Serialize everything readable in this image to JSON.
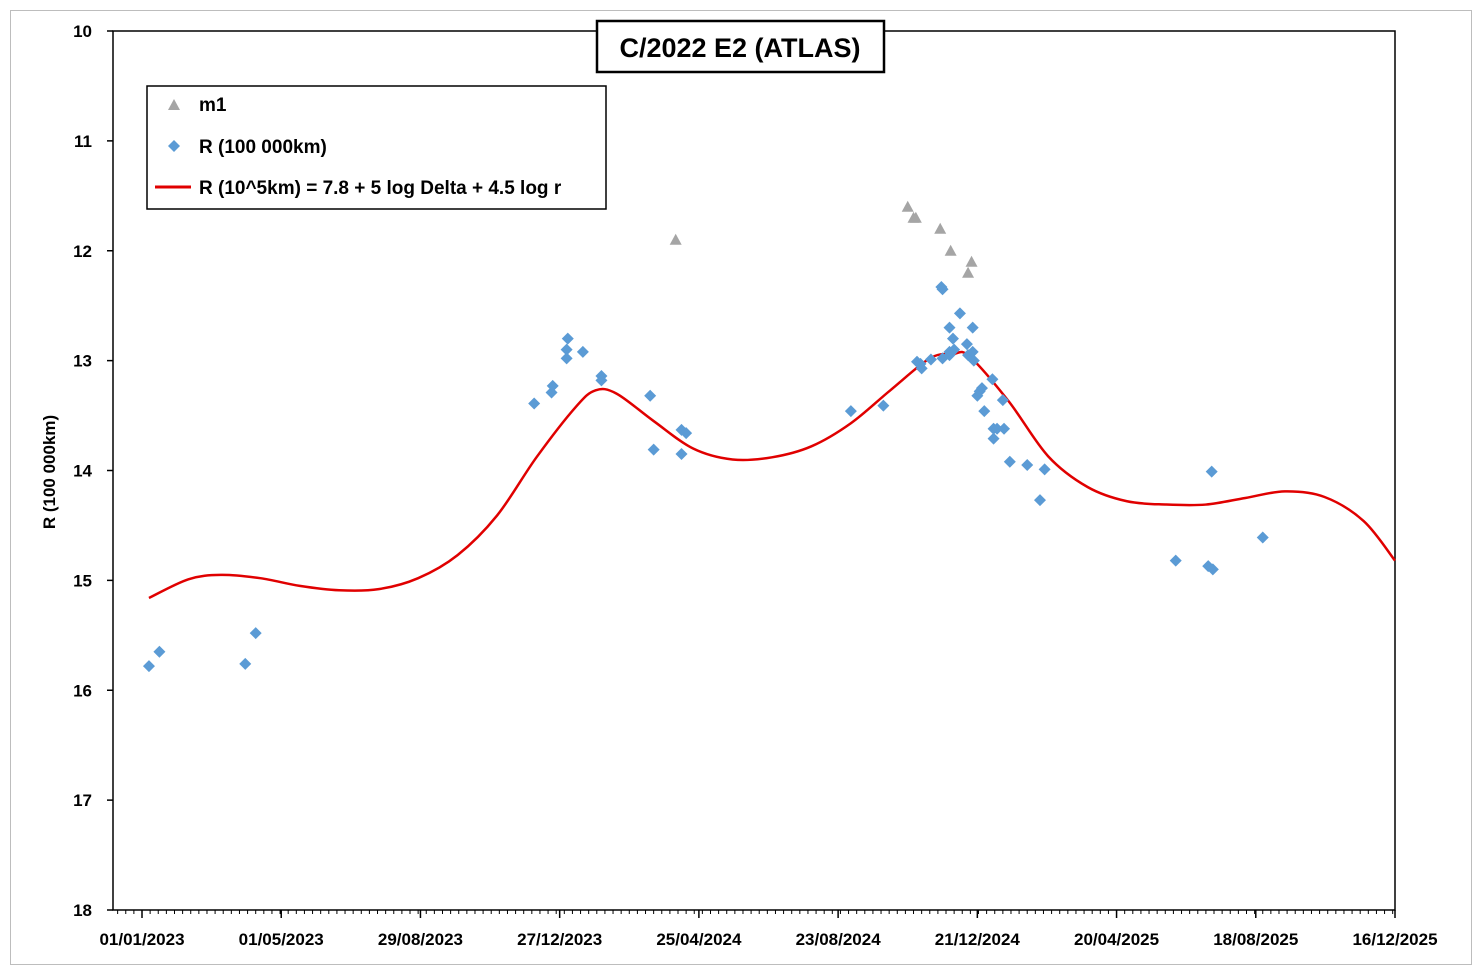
{
  "chart_data": {
    "type": "scatter",
    "title": "C/2022 E2 (ATLAS)",
    "xlabel": "",
    "ylabel": "R (100 000km)",
    "x_axis": {
      "kind": "date",
      "min": "2022-12-07",
      "max": "2025-12-16",
      "tick_labels": [
        "01/01/2023",
        "01/05/2023",
        "29/08/2023",
        "27/12/2023",
        "25/04/2024",
        "23/08/2024",
        "21/12/2024",
        "20/04/2025",
        "18/08/2025",
        "16/12/2025"
      ]
    },
    "y_axis": {
      "min": 10,
      "max": 18,
      "inverted": true,
      "tick_labels": [
        "10",
        "11",
        "12",
        "13",
        "14",
        "15",
        "16",
        "17",
        "18"
      ]
    },
    "grid": false,
    "legend_position": "top-left",
    "colors": {
      "m1": "#a5a5a5",
      "R": "#5b9bd5",
      "model": "#e00000"
    },
    "series": [
      {
        "name": "m1",
        "marker": "triangle",
        "points": [
          [
            "2024-04-05",
            11.9
          ],
          [
            "2024-10-22",
            11.6
          ],
          [
            "2024-10-27",
            11.7
          ],
          [
            "2024-10-29",
            11.7
          ],
          [
            "2024-11-19",
            11.8
          ],
          [
            "2024-11-28",
            12.0
          ],
          [
            "2024-12-13",
            12.2
          ],
          [
            "2024-12-16",
            12.1
          ]
        ]
      },
      {
        "name": "R (100 000km)",
        "marker": "diamond",
        "points": [
          [
            "2023-01-07",
            15.78
          ],
          [
            "2023-01-16",
            15.65
          ],
          [
            "2023-03-31",
            15.76
          ],
          [
            "2023-04-09",
            15.48
          ],
          [
            "2023-12-05",
            13.39
          ],
          [
            "2023-12-20",
            13.29
          ],
          [
            "2023-12-21",
            13.23
          ],
          [
            "2024-01-02",
            12.98
          ],
          [
            "2024-01-02",
            12.9
          ],
          [
            "2024-01-03",
            12.8
          ],
          [
            "2024-01-16",
            12.92
          ],
          [
            "2024-02-01",
            13.14
          ],
          [
            "2024-02-01",
            13.18
          ],
          [
            "2024-03-14",
            13.32
          ],
          [
            "2024-03-17",
            13.81
          ],
          [
            "2024-04-10",
            13.63
          ],
          [
            "2024-04-10",
            13.85
          ],
          [
            "2024-04-14",
            13.66
          ],
          [
            "2024-09-03",
            13.46
          ],
          [
            "2024-10-01",
            13.41
          ],
          [
            "2024-10-30",
            13.01
          ],
          [
            "2024-11-02",
            13.03
          ],
          [
            "2024-11-03",
            13.07
          ],
          [
            "2024-11-11",
            12.99
          ],
          [
            "2024-11-20",
            12.33
          ],
          [
            "2024-11-21",
            12.35
          ],
          [
            "2024-11-21",
            12.98
          ],
          [
            "2024-11-27",
            12.95
          ],
          [
            "2024-11-27",
            12.92
          ],
          [
            "2024-11-27",
            12.7
          ],
          [
            "2024-11-30",
            12.8
          ],
          [
            "2024-12-01",
            12.9
          ],
          [
            "2024-12-06",
            12.57
          ],
          [
            "2024-12-12",
            12.85
          ],
          [
            "2024-12-13",
            12.95
          ],
          [
            "2024-12-17",
            12.7
          ],
          [
            "2024-12-17",
            12.92
          ],
          [
            "2024-12-18",
            13.0
          ],
          [
            "2024-12-21",
            13.32
          ],
          [
            "2024-12-23",
            13.28
          ],
          [
            "2024-12-25",
            13.25
          ],
          [
            "2024-12-27",
            13.46
          ],
          [
            "2025-01-03",
            13.17
          ],
          [
            "2025-01-04",
            13.62
          ],
          [
            "2025-01-04",
            13.71
          ],
          [
            "2025-01-07",
            13.62
          ],
          [
            "2025-01-12",
            13.36
          ],
          [
            "2025-01-13",
            13.62
          ],
          [
            "2025-01-18",
            13.92
          ],
          [
            "2025-02-02",
            13.95
          ],
          [
            "2025-02-13",
            14.27
          ],
          [
            "2025-02-17",
            13.99
          ],
          [
            "2025-06-10",
            14.82
          ],
          [
            "2025-07-08",
            14.87
          ],
          [
            "2025-07-11",
            14.01
          ],
          [
            "2025-07-12",
            14.9
          ],
          [
            "2025-08-24",
            14.61
          ]
        ]
      },
      {
        "name": "R (10^5km) = 7.8 + 5 log Delta + 4.5 log r",
        "marker": "line",
        "points": [
          [
            "2023-01-07",
            15.16
          ],
          [
            "2023-02-10",
            14.99
          ],
          [
            "2023-03-10",
            14.95
          ],
          [
            "2023-04-13",
            14.98
          ],
          [
            "2023-05-17",
            15.05
          ],
          [
            "2023-06-20",
            15.09
          ],
          [
            "2023-07-24",
            15.08
          ],
          [
            "2023-08-27",
            14.98
          ],
          [
            "2023-09-30",
            14.77
          ],
          [
            "2023-11-03",
            14.41
          ],
          [
            "2023-12-07",
            13.88
          ],
          [
            "2024-01-10",
            13.42
          ],
          [
            "2024-01-27",
            13.27
          ],
          [
            "2024-02-14",
            13.3
          ],
          [
            "2024-03-17",
            13.55
          ],
          [
            "2024-04-20",
            13.8
          ],
          [
            "2024-05-24",
            13.9
          ],
          [
            "2024-06-27",
            13.88
          ],
          [
            "2024-07-31",
            13.78
          ],
          [
            "2024-09-03",
            13.57
          ],
          [
            "2024-10-07",
            13.27
          ],
          [
            "2024-11-10",
            12.98
          ],
          [
            "2024-11-30",
            12.94
          ],
          [
            "2024-12-14",
            12.96
          ],
          [
            "2025-01-17",
            13.37
          ],
          [
            "2025-02-20",
            13.87
          ],
          [
            "2025-03-26",
            14.15
          ],
          [
            "2025-04-29",
            14.28
          ],
          [
            "2025-06-02",
            14.31
          ],
          [
            "2025-07-06",
            14.31
          ],
          [
            "2025-08-09",
            14.25
          ],
          [
            "2025-09-12",
            14.19
          ],
          [
            "2025-10-16",
            14.24
          ],
          [
            "2025-11-19",
            14.46
          ],
          [
            "2025-12-16",
            14.82
          ]
        ]
      }
    ]
  }
}
